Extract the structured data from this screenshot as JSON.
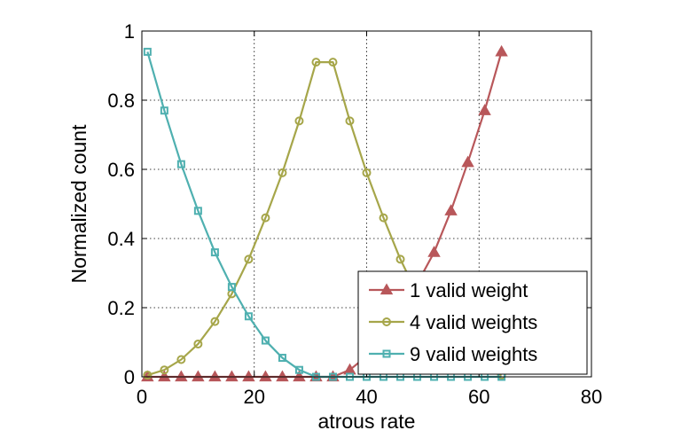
{
  "chart_data": {
    "type": "line",
    "xlabel": "atrous rate",
    "ylabel": "Normalized count",
    "xlim": [
      0,
      80
    ],
    "ylim": [
      0,
      1
    ],
    "xticks": [
      0,
      20,
      40,
      60,
      80
    ],
    "yticks": [
      0,
      0.2,
      0.4,
      0.6,
      0.8,
      1
    ],
    "xtick_labels": [
      "0",
      "20",
      "40",
      "60",
      "80"
    ],
    "ytick_labels": [
      "0",
      "0.2",
      "0.4",
      "0.6",
      "0.8",
      "1"
    ],
    "grid": true,
    "legend_position": "bottom-right",
    "x": [
      1,
      4,
      7,
      10,
      13,
      16,
      19,
      22,
      25,
      28,
      31,
      34,
      37,
      40,
      43,
      46,
      49,
      52,
      55,
      58,
      61,
      64
    ],
    "series": [
      {
        "name": "1 valid weight",
        "color": "#b8575a",
        "marker": "triangle",
        "values": [
          0,
          0,
          0,
          0,
          0,
          0,
          0,
          0,
          0,
          0,
          0,
          0,
          0.02,
          0.06,
          0.12,
          0.19,
          0.27,
          0.36,
          0.48,
          0.62,
          0.77,
          0.94
        ]
      },
      {
        "name": "4 valid weights",
        "color": "#a6a64a",
        "marker": "circle",
        "values": [
          0.005,
          0.02,
          0.05,
          0.095,
          0.16,
          0.24,
          0.34,
          0.46,
          0.59,
          0.74,
          0.91,
          0.91,
          0.74,
          0.59,
          0.46,
          0.34,
          0.24,
          0.16,
          0.095,
          0.05,
          0.02,
          0.005
        ]
      },
      {
        "name": "9 valid weights",
        "color": "#4fb0b0",
        "marker": "square",
        "values": [
          0.94,
          0.77,
          0.615,
          0.48,
          0.36,
          0.26,
          0.175,
          0.105,
          0.055,
          0.02,
          0,
          0,
          0,
          0,
          0,
          0,
          0,
          0,
          0,
          0,
          0,
          0
        ]
      }
    ]
  }
}
